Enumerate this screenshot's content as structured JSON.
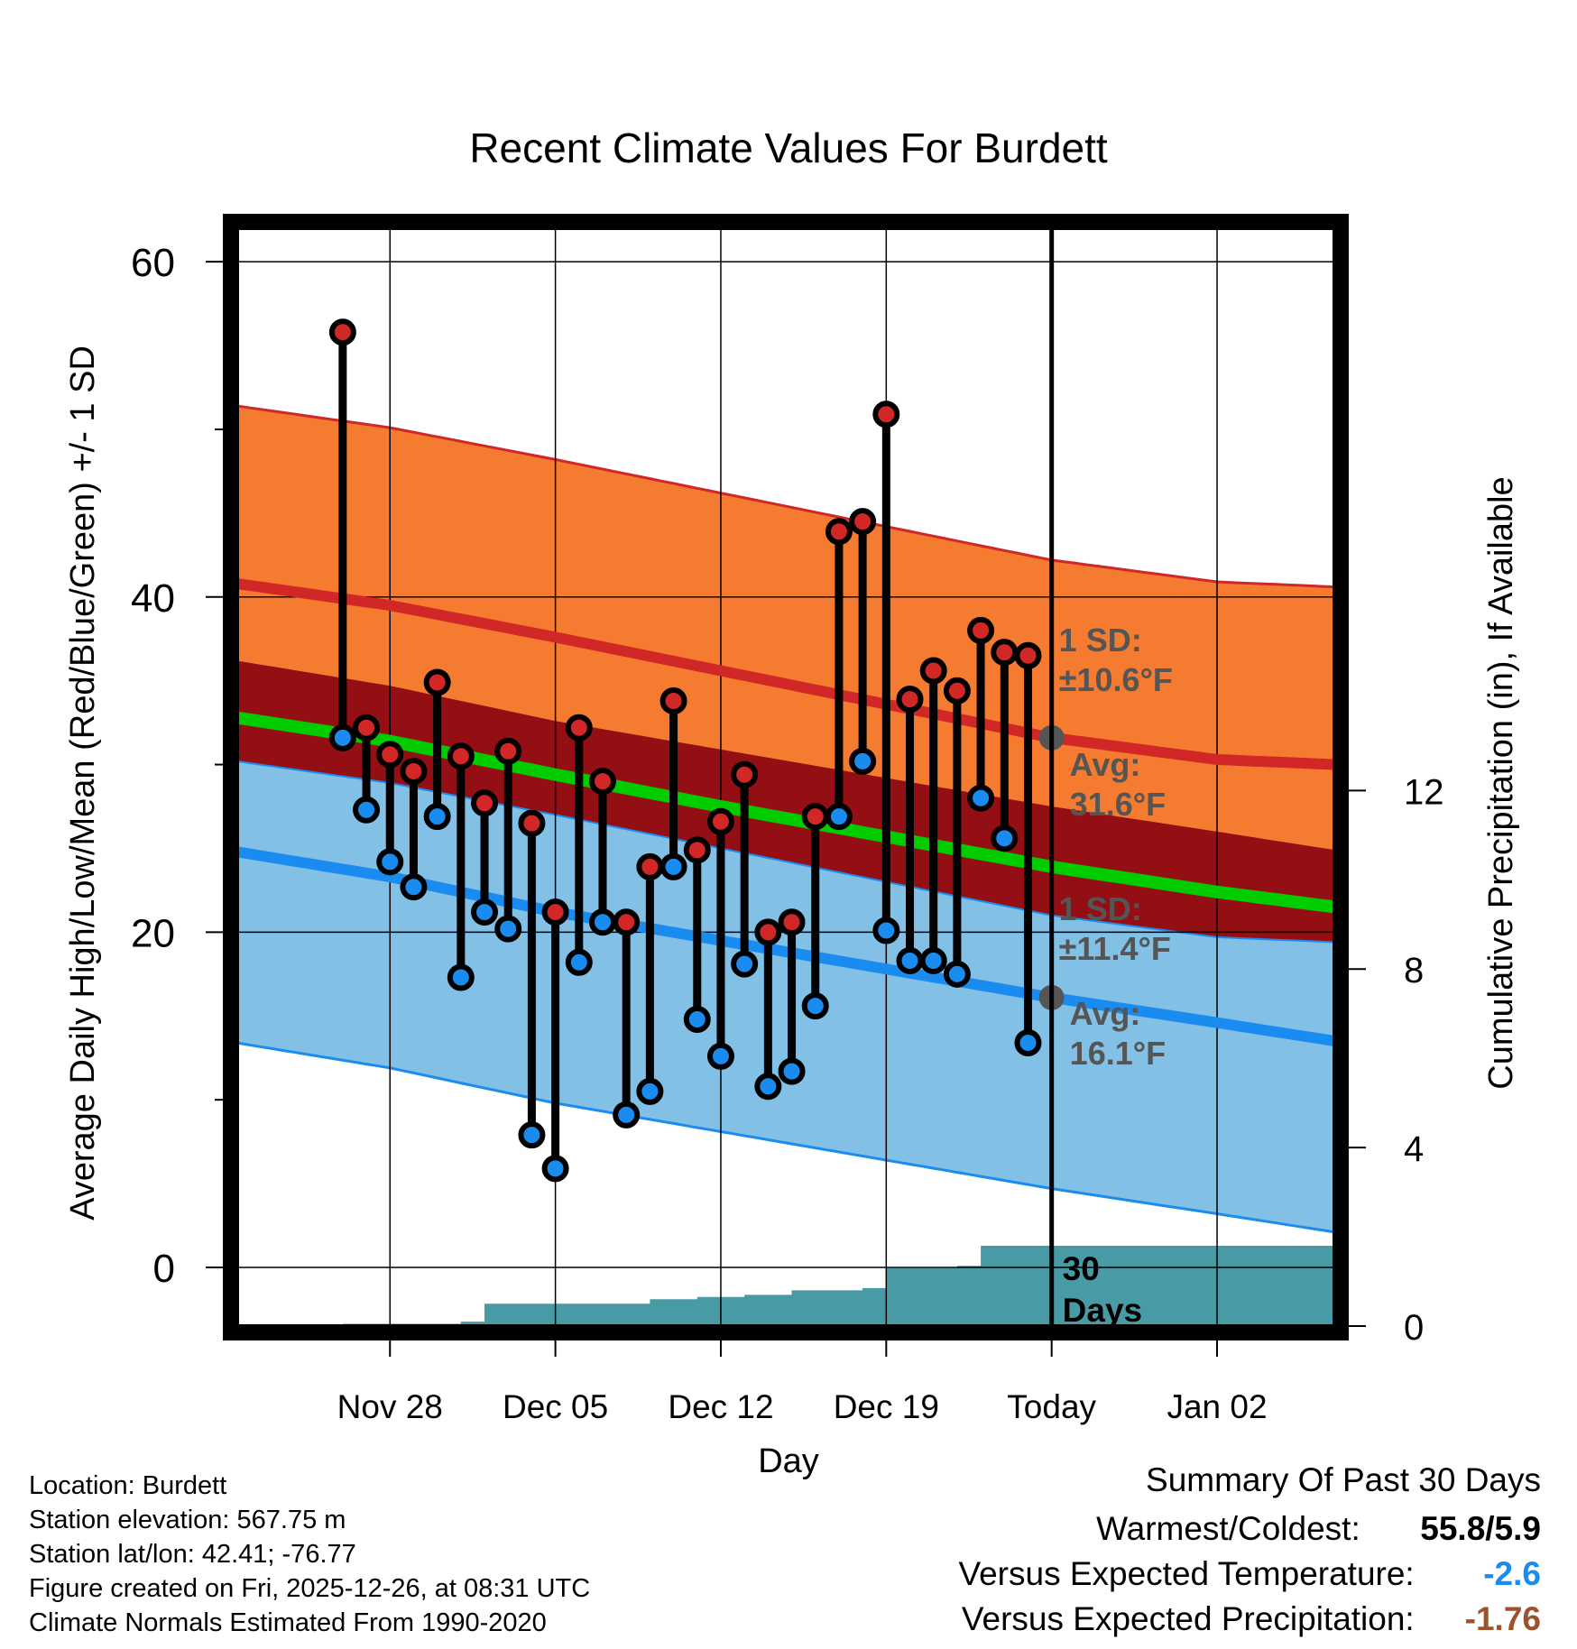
{
  "chart_data": {
    "type": "line",
    "title": "Recent Climate Values For Burdett",
    "xlabel": "Day",
    "ylabel": "Average Daily High/Low/Mean (Red/Blue/Green) +/- 1 SD",
    "y2label": "Cumulative Precipitation (in), If Available",
    "ylim": [
      -3.5,
      62
    ],
    "y2lim": [
      0,
      24.6
    ],
    "xlim": [
      -6.5,
      40
    ],
    "x_ticks": [
      {
        "x": 0,
        "label": "Nov 28"
      },
      {
        "x": 7,
        "label": "Dec 05"
      },
      {
        "x": 14,
        "label": "Dec 12"
      },
      {
        "x": 21,
        "label": "Dec 19"
      },
      {
        "x": 28,
        "label": "Today"
      },
      {
        "x": 35,
        "label": "Jan 02"
      }
    ],
    "y_ticks": [
      0,
      20,
      40,
      60
    ],
    "y2_ticks": [
      0,
      4,
      8,
      12
    ],
    "today_x": 28,
    "days_label": "30 Days",
    "daily_high": [
      55.8,
      32.2,
      30.6,
      29.6,
      34.9,
      30.5,
      27.7,
      30.8,
      26.5,
      21.2,
      32.2,
      29.0,
      20.6,
      23.9,
      33.8,
      24.9,
      26.6,
      29.4,
      20.0,
      20.6,
      26.9,
      43.9,
      44.5,
      50.9,
      33.9,
      35.6,
      34.4,
      38.0,
      36.7,
      36.5
    ],
    "daily_low": [
      31.6,
      27.3,
      24.2,
      22.7,
      26.9,
      17.3,
      21.2,
      20.2,
      7.9,
      5.9,
      18.2,
      20.6,
      9.1,
      10.5,
      23.9,
      14.8,
      12.6,
      18.1,
      10.8,
      11.7,
      15.6,
      26.9,
      30.2,
      20.1,
      18.3,
      18.3,
      17.5,
      28.0,
      25.6,
      13.4
    ],
    "normal_high_x": [
      -6.5,
      0,
      7,
      14,
      21,
      28,
      35,
      40
    ],
    "normal_high": [
      40.8,
      39.5,
      37.6,
      35.6,
      33.6,
      31.6,
      30.3,
      30.0
    ],
    "normal_low": [
      24.8,
      23.3,
      21.2,
      19.5,
      17.8,
      16.1,
      14.6,
      13.5
    ],
    "normal_mean": [
      32.8,
      31.4,
      29.4,
      27.5,
      25.7,
      23.9,
      22.4,
      21.5
    ],
    "high_sd": 10.6,
    "low_sd": 11.4,
    "high_sd_label": [
      "1 SD:",
      "±10.6°F"
    ],
    "high_avg_label": [
      "Avg:",
      "31.6°F"
    ],
    "low_sd_label": [
      "1 SD:",
      "±11.4°F"
    ],
    "low_avg_label": [
      "Avg:",
      "16.1°F"
    ],
    "precip_x": [
      -2,
      3,
      4,
      11,
      13,
      15,
      17,
      20,
      21,
      24,
      25,
      40
    ],
    "precip_cum": [
      0.05,
      0.1,
      0.5,
      0.6,
      0.65,
      0.7,
      0.8,
      0.85,
      1.3,
      1.35,
      1.8,
      1.8
    ],
    "colors": {
      "high_band": "#f47b30",
      "mid_band": "#930f13",
      "low_band": "#82c0e6",
      "high_line": "#d12727",
      "low_line": "#1a8cf0",
      "mean_line": "#00cc00",
      "precip": "#489ba4",
      "high_dot": "#d12727",
      "low_dot": "#1a8cf0",
      "annotation": "#555555"
    }
  },
  "info": {
    "location": "Location: Burdett",
    "elevation": "Station elevation: 567.75 m",
    "latlon": "Station lat/lon: 42.41; -76.77",
    "created": "Figure created on Fri, 2025-12-26, at 08:31 UTC",
    "normals": "Climate Normals Estimated From 1990-2020"
  },
  "summary": {
    "title": "Summary Of Past 30 Days",
    "warmest_label": "Warmest/Coldest:",
    "warmest_value": "55.8/5.9",
    "temp_label": "Versus Expected Temperature:",
    "temp_value": "-2.6",
    "temp_color": "#1a8cf0",
    "precip_label": "Versus Expected Precipitation:",
    "precip_value": "-1.76",
    "precip_color": "#a0522d"
  }
}
